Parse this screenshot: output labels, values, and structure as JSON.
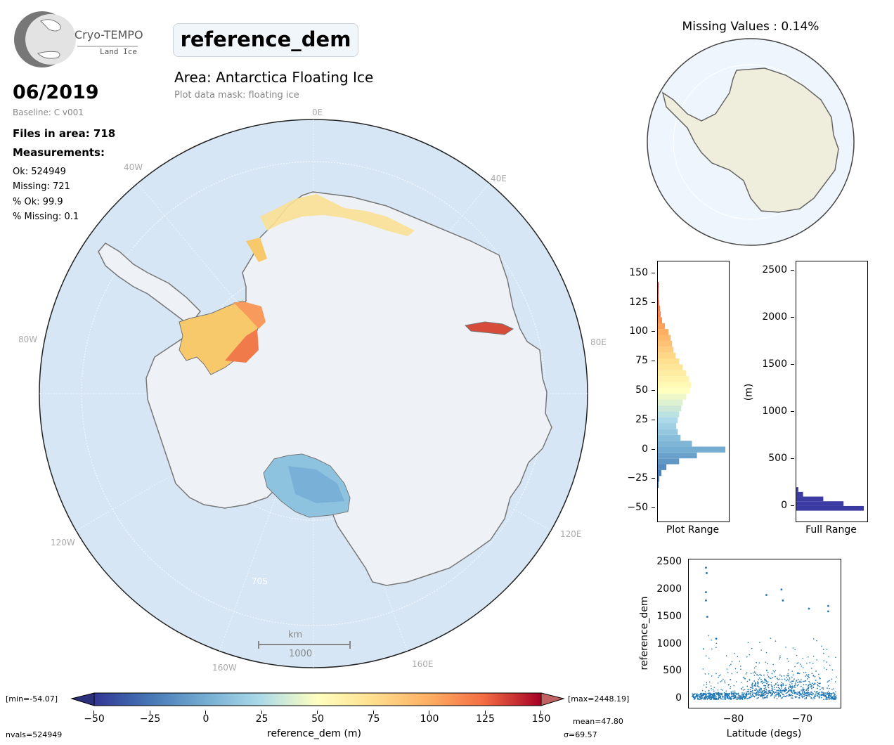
{
  "header": {
    "logo_name": "Cryo-TEMPO",
    "logo_sub": "Land Ice",
    "parameter": "reference_dem",
    "area_title": "Area: Antarctica Floating Ice",
    "mask_note": "Plot data mask: floating ice",
    "date": "06/2019",
    "baseline": "Baseline: C v001"
  },
  "stats": {
    "files": "Files in area: 718",
    "measurements_label": "Measurements:",
    "ok": "Ok: 524949",
    "missing": "Missing: 721",
    "pct_ok": "% Ok: 99.9",
    "pct_missing": "% Missing: 0.1"
  },
  "map": {
    "lon_labels": {
      "l0e": "0E",
      "l40w": "40W",
      "l40e": "40E",
      "l80w": "80W",
      "l80e": "80E",
      "l120w": "120W",
      "l120e": "120E",
      "l160w": "160W",
      "l160e": "160E"
    },
    "lat_label": "70S",
    "scalebar_unit": "km",
    "scalebar_value": "1000"
  },
  "inset": {
    "title": "Missing Values : 0.14%"
  },
  "colors": {
    "ocean": "#d8e8f5",
    "ice": "#eef2f6",
    "coast": "#777777",
    "hist_full": "#3b3ba3",
    "scatter": "#1f77b4"
  },
  "colorbar": {
    "label": "reference_dem (m)",
    "min_text": "[min=-54.07]",
    "max_text": "[max=2448.19]",
    "mean_text": "mean=47.80",
    "sigma_text": "σ=69.57",
    "nvals_text": "nvals=524949",
    "ticks": [
      "−50",
      "−25",
      "0",
      "25",
      "50",
      "75",
      "100",
      "125",
      "150"
    ]
  },
  "chart_data": [
    {
      "type": "bar",
      "title": "",
      "xlabel": "Plot Range",
      "ylabel": "",
      "ylim": [
        -60,
        160
      ],
      "y_ticks": [
        "150",
        "125",
        "100",
        "75",
        "50",
        "25",
        "0",
        "−25",
        "−50"
      ],
      "orientation": "horizontal",
      "bin_centers": [
        -30,
        -25,
        -20,
        -15,
        -10,
        -5,
        0,
        5,
        10,
        15,
        20,
        25,
        30,
        35,
        40,
        45,
        50,
        55,
        60,
        65,
        70,
        75,
        80,
        85,
        90,
        95,
        100,
        105,
        110,
        115,
        120,
        125,
        130,
        135,
        140
      ],
      "counts": [
        1,
        2,
        5,
        12,
        30,
        55,
        95,
        48,
        32,
        28,
        26,
        28,
        30,
        33,
        35,
        40,
        45,
        47,
        44,
        40,
        35,
        30,
        25,
        22,
        20,
        18,
        15,
        10,
        6,
        4,
        3,
        2,
        1,
        1,
        1
      ]
    },
    {
      "type": "bar",
      "title": "",
      "xlabel": "Full Range",
      "ylabel": "(m)",
      "ylim": [
        -150,
        2600
      ],
      "y_ticks": [
        "2500",
        "2000",
        "1500",
        "1000",
        "500",
        "0"
      ],
      "orientation": "horizontal",
      "bin_centers": [
        -25,
        25,
        75,
        125,
        175
      ],
      "counts": [
        100,
        70,
        40,
        10,
        3
      ]
    },
    {
      "type": "scatter",
      "title": "",
      "xlabel": "Latitude (degs)",
      "ylabel": "reference_dem",
      "xlim": [
        -86.5,
        -64.5
      ],
      "ylim": [
        -150,
        2550
      ],
      "x_ticks": [
        "−80",
        "−70"
      ],
      "y_ticks": [
        "2500",
        "2000",
        "1500",
        "1000",
        "500",
        "0"
      ],
      "clusters": [
        {
          "x": -84.0,
          "y": 2400
        },
        {
          "x": -83.9,
          "y": 2300
        },
        {
          "x": -84.0,
          "y": 1950
        },
        {
          "x": -84.0,
          "y": 1800
        },
        {
          "x": -83.8,
          "y": 1500
        },
        {
          "x": -82.5,
          "y": 1100
        },
        {
          "x": -75.2,
          "y": 1900
        },
        {
          "x": -73.0,
          "y": 2000
        },
        {
          "x": -72.8,
          "y": 1800
        },
        {
          "x": -69.0,
          "y": 1650
        },
        {
          "x": -66.2,
          "y": 1700
        },
        {
          "x": -66.2,
          "y": 1600
        }
      ]
    }
  ]
}
